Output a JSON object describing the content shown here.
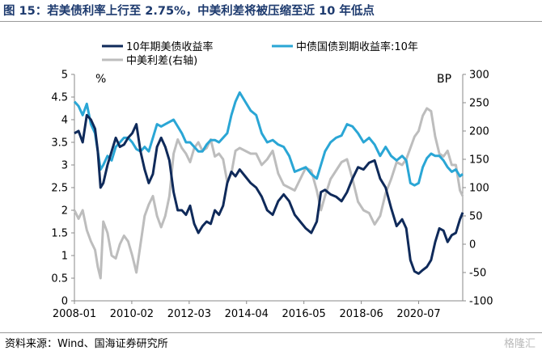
{
  "title": "图 15：若美债利率上行至 2.75%，中美利差将被压缩至近 10 年低点",
  "source": "资料来源：Wind、国海证券研究所",
  "watermark": "格隆汇",
  "chart_data": {
    "type": "line",
    "left_unit": "%",
    "right_unit": "BP",
    "left_ylim": [
      0,
      5
    ],
    "left_ticks": [
      "0",
      "0.5",
      "1",
      "1.5",
      "2",
      "2.5",
      "3",
      "3.5",
      "4",
      "4.5",
      "5"
    ],
    "right_ylim": [
      -100,
      300
    ],
    "right_ticks": [
      "-100",
      "-50",
      "0",
      "50",
      "100",
      "150",
      "200",
      "250",
      "300"
    ],
    "xlim": [
      2008.0,
      2022.1
    ],
    "x_tick_positions": [
      2008.0,
      2010.083,
      2012.167,
      2014.25,
      2016.333,
      2018.417,
      2020.5
    ],
    "x_tick_labels": [
      "2008-01",
      "2010-02",
      "2012-03",
      "2014-04",
      "2016-05",
      "2018-06",
      "2020-07"
    ],
    "grid": false,
    "legend_position": "top",
    "series": [
      {
        "name": "10年期美债收益率",
        "axis": "left",
        "color": "#0f2a5a",
        "x": [
          2008.0,
          2008.15,
          2008.3,
          2008.45,
          2008.6,
          2008.75,
          2008.85,
          2008.95,
          2009.05,
          2009.2,
          2009.35,
          2009.5,
          2009.65,
          2009.8,
          2009.95,
          2010.1,
          2010.25,
          2010.4,
          2010.55,
          2010.7,
          2010.85,
          2011.0,
          2011.15,
          2011.3,
          2011.45,
          2011.6,
          2011.75,
          2011.9,
          2012.05,
          2012.2,
          2012.35,
          2012.5,
          2012.65,
          2012.8,
          2012.95,
          2013.1,
          2013.25,
          2013.4,
          2013.55,
          2013.7,
          2013.85,
          2014.0,
          2014.2,
          2014.4,
          2014.6,
          2014.8,
          2015.0,
          2015.2,
          2015.4,
          2015.6,
          2015.8,
          2016.0,
          2016.2,
          2016.4,
          2016.6,
          2016.8,
          2016.95,
          2017.1,
          2017.3,
          2017.5,
          2017.7,
          2017.9,
          2018.1,
          2018.3,
          2018.5,
          2018.7,
          2018.9,
          2019.1,
          2019.3,
          2019.5,
          2019.7,
          2019.9,
          2020.05,
          2020.2,
          2020.35,
          2020.5,
          2020.65,
          2020.8,
          2020.95,
          2021.1,
          2021.25,
          2021.4,
          2021.55,
          2021.7,
          2021.85,
          2022.0,
          2022.1
        ],
        "values": [
          3.7,
          3.75,
          3.5,
          4.1,
          4.0,
          3.8,
          3.3,
          2.5,
          2.6,
          3.0,
          3.3,
          3.6,
          3.4,
          3.45,
          3.6,
          3.7,
          3.9,
          3.3,
          2.9,
          2.6,
          2.8,
          3.4,
          3.6,
          3.4,
          3.1,
          2.4,
          2.0,
          2.0,
          1.9,
          2.1,
          1.7,
          1.5,
          1.65,
          1.75,
          1.7,
          2.0,
          1.9,
          2.1,
          2.6,
          2.85,
          2.75,
          2.9,
          2.75,
          2.6,
          2.5,
          2.3,
          2.0,
          1.9,
          2.2,
          2.35,
          2.2,
          1.9,
          1.75,
          1.6,
          1.5,
          1.75,
          2.4,
          2.45,
          2.35,
          2.3,
          2.2,
          2.4,
          2.7,
          2.95,
          2.9,
          3.05,
          3.1,
          2.7,
          2.5,
          2.05,
          1.65,
          1.8,
          1.6,
          0.9,
          0.65,
          0.6,
          0.68,
          0.75,
          0.9,
          1.3,
          1.6,
          1.55,
          1.3,
          1.45,
          1.5,
          1.8,
          1.95
        ]
      },
      {
        "name": "中债国债到期收益率:10年",
        "axis": "left",
        "color": "#2aa6d5",
        "x": [
          2008.0,
          2008.15,
          2008.3,
          2008.45,
          2008.6,
          2008.75,
          2008.85,
          2008.95,
          2009.05,
          2009.2,
          2009.35,
          2009.5,
          2009.65,
          2009.8,
          2009.95,
          2010.1,
          2010.25,
          2010.4,
          2010.55,
          2010.7,
          2010.85,
          2011.0,
          2011.15,
          2011.3,
          2011.45,
          2011.6,
          2011.75,
          2011.9,
          2012.05,
          2012.2,
          2012.35,
          2012.5,
          2012.65,
          2012.8,
          2012.95,
          2013.1,
          2013.25,
          2013.4,
          2013.55,
          2013.7,
          2013.85,
          2014.0,
          2014.2,
          2014.4,
          2014.6,
          2014.8,
          2015.0,
          2015.2,
          2015.4,
          2015.6,
          2015.8,
          2016.0,
          2016.2,
          2016.4,
          2016.6,
          2016.8,
          2016.95,
          2017.1,
          2017.3,
          2017.5,
          2017.7,
          2017.9,
          2018.1,
          2018.3,
          2018.5,
          2018.7,
          2018.9,
          2019.1,
          2019.3,
          2019.5,
          2019.7,
          2019.9,
          2020.05,
          2020.2,
          2020.35,
          2020.5,
          2020.65,
          2020.8,
          2020.95,
          2021.1,
          2021.25,
          2021.4,
          2021.55,
          2021.7,
          2021.85,
          2022.0,
          2022.1
        ],
        "values": [
          4.4,
          4.3,
          4.1,
          4.35,
          3.9,
          3.7,
          3.3,
          2.9,
          3.0,
          3.2,
          3.1,
          3.4,
          3.5,
          3.6,
          3.6,
          3.5,
          3.35,
          3.3,
          3.4,
          3.3,
          3.6,
          3.9,
          3.85,
          3.9,
          3.95,
          4.0,
          3.85,
          3.7,
          3.5,
          3.5,
          3.4,
          3.3,
          3.3,
          3.45,
          3.55,
          3.55,
          3.5,
          3.6,
          3.7,
          4.1,
          4.4,
          4.6,
          4.4,
          4.2,
          4.1,
          3.7,
          3.5,
          3.55,
          3.45,
          3.4,
          3.2,
          2.85,
          2.9,
          2.95,
          2.8,
          2.7,
          3.0,
          3.3,
          3.5,
          3.6,
          3.65,
          3.9,
          3.85,
          3.7,
          3.5,
          3.6,
          3.45,
          3.2,
          3.4,
          3.2,
          3.1,
          3.2,
          3.1,
          2.6,
          2.55,
          2.6,
          2.95,
          3.15,
          3.25,
          3.2,
          3.2,
          3.1,
          2.95,
          2.85,
          2.9,
          2.75,
          2.8
        ]
      },
      {
        "name": "中美利差(右轴)",
        "axis": "right",
        "color": "#bdbdbd",
        "x": [
          2008.0,
          2008.15,
          2008.3,
          2008.45,
          2008.6,
          2008.75,
          2008.85,
          2008.95,
          2009.05,
          2009.2,
          2009.35,
          2009.5,
          2009.65,
          2009.8,
          2009.95,
          2010.1,
          2010.25,
          2010.4,
          2010.55,
          2010.7,
          2010.85,
          2011.0,
          2011.15,
          2011.3,
          2011.45,
          2011.6,
          2011.75,
          2011.9,
          2012.05,
          2012.2,
          2012.35,
          2012.5,
          2012.65,
          2012.8,
          2012.95,
          2013.1,
          2013.25,
          2013.4,
          2013.55,
          2013.7,
          2013.85,
          2014.0,
          2014.2,
          2014.4,
          2014.6,
          2014.8,
          2015.0,
          2015.2,
          2015.4,
          2015.6,
          2015.8,
          2016.0,
          2016.2,
          2016.4,
          2016.6,
          2016.8,
          2016.95,
          2017.1,
          2017.3,
          2017.5,
          2017.7,
          2017.9,
          2018.1,
          2018.3,
          2018.5,
          2018.7,
          2018.9,
          2019.1,
          2019.3,
          2019.5,
          2019.7,
          2019.9,
          2020.05,
          2020.2,
          2020.35,
          2020.5,
          2020.65,
          2020.8,
          2020.95,
          2021.1,
          2021.25,
          2021.4,
          2021.55,
          2021.7,
          2021.85,
          2022.0,
          2022.1
        ],
        "values": [
          60,
          45,
          60,
          25,
          5,
          -10,
          -40,
          -60,
          40,
          20,
          -20,
          -25,
          0,
          15,
          5,
          -20,
          -50,
          0,
          50,
          70,
          85,
          50,
          30,
          50,
          85,
          160,
          185,
          170,
          160,
          145,
          170,
          180,
          165,
          170,
          185,
          155,
          160,
          150,
          110,
          125,
          165,
          170,
          165,
          160,
          160,
          140,
          150,
          165,
          125,
          105,
          100,
          95,
          115,
          135,
          130,
          95,
          60,
          85,
          115,
          130,
          145,
          150,
          115,
          75,
          60,
          55,
          35,
          50,
          90,
          115,
          145,
          140,
          150,
          170,
          190,
          200,
          227,
          240,
          235,
          190,
          160,
          155,
          165,
          140,
          140,
          95,
          85
        ]
      }
    ]
  }
}
